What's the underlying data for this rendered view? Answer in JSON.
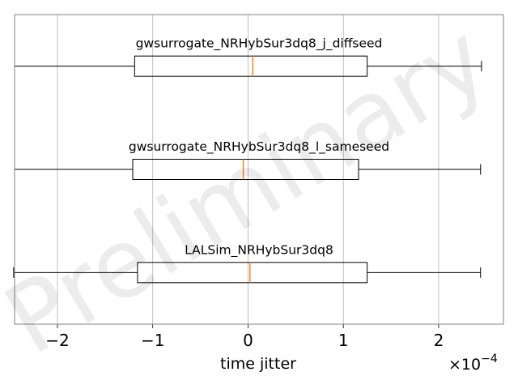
{
  "chart_data": {
    "type": "boxplot",
    "orientation": "horizontal",
    "xlabel": "time jitter",
    "x_scale_label": "×10",
    "x_scale_exponent": "−4",
    "xlim": [
      -2.45,
      2.68
    ],
    "xticks": [
      -2,
      -1,
      0,
      1,
      2
    ],
    "xtick_labels": [
      "−2",
      "−1",
      "0",
      "1",
      "2"
    ],
    "grid": "vertical",
    "watermark": "Preliminary",
    "series": [
      {
        "name": "gwsurrogate_NRHybSur3dq8_j_diffseed",
        "whisker_low": -2.45,
        "q1": -1.19,
        "median": 0.05,
        "q3": 1.25,
        "whisker_high": 2.45
      },
      {
        "name": "gwsurrogate_NRHybSur3dq8_l_sameseed",
        "whisker_low": -2.45,
        "q1": -1.21,
        "median": -0.05,
        "q3": 1.16,
        "whisker_high": 2.44
      },
      {
        "name": "LALSim_NRHybSur3dq8",
        "whisker_low": -2.46,
        "q1": -1.16,
        "median": 0.02,
        "q3": 1.25,
        "whisker_high": 2.44
      }
    ],
    "colors": {
      "median": "#ff7f0e",
      "box": "#000000",
      "grid": "#b0b0b0",
      "frame": "#808080"
    }
  }
}
